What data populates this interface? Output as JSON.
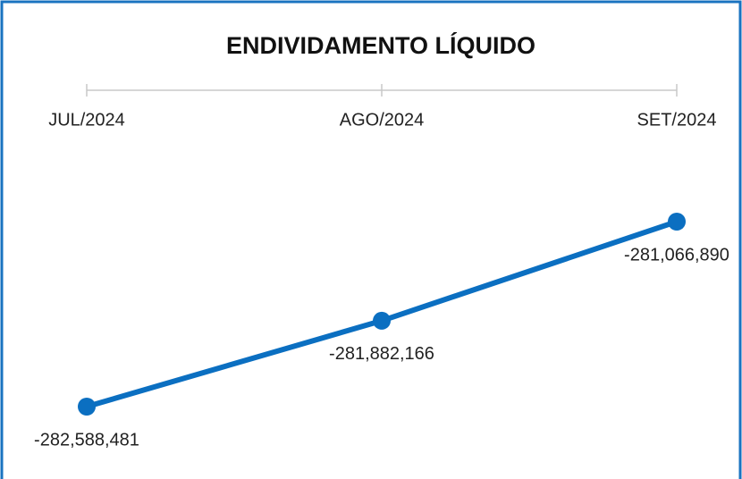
{
  "chart_data": {
    "type": "line",
    "title": "ENDIVIDAMENTO LÍQUIDO",
    "categories": [
      "JUL/2024",
      "AGO/2024",
      "SET/2024"
    ],
    "values": [
      -282588481,
      -281882166,
      -281066890
    ],
    "value_labels": [
      "-282,588,481",
      "-281,882,166",
      "-281,066,890"
    ],
    "color": "#0b6fc1"
  }
}
